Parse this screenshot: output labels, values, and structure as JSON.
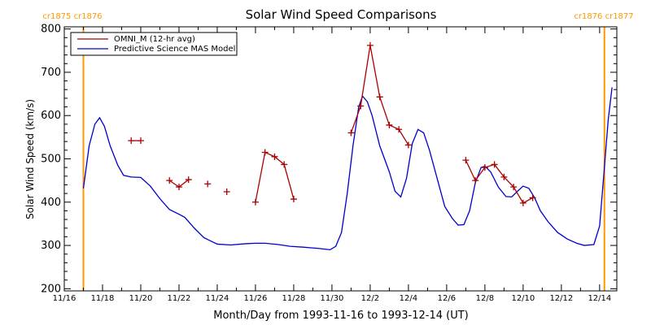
{
  "chart_data": {
    "type": "line",
    "title": "Solar Wind Speed Comparisons",
    "xlabel": "Month/Day from 1993-11-16 to 1993-12-14 (UT)",
    "ylabel": "Solar Wind Speed (km/s)",
    "xlim_days": [
      0,
      28.9
    ],
    "ylim": [
      195,
      805
    ],
    "yticks": [
      200,
      300,
      400,
      500,
      600,
      700,
      800
    ],
    "xticks": [
      {
        "day": 0,
        "label": "11/16"
      },
      {
        "day": 2,
        "label": "11/18"
      },
      {
        "day": 4,
        "label": "11/20"
      },
      {
        "day": 6,
        "label": "11/22"
      },
      {
        "day": 8,
        "label": "11/24"
      },
      {
        "day": 10,
        "label": "11/26"
      },
      {
        "day": 12,
        "label": "11/28"
      },
      {
        "day": 14,
        "label": "11/30"
      },
      {
        "day": 16,
        "label": "12/2"
      },
      {
        "day": 18,
        "label": "12/4"
      },
      {
        "day": 20,
        "label": "12/6"
      },
      {
        "day": 22,
        "label": "12/8"
      },
      {
        "day": 24,
        "label": "12/10"
      },
      {
        "day": 26,
        "label": "12/12"
      },
      {
        "day": 28,
        "label": "12/14"
      }
    ],
    "rotation_boundaries": [
      {
        "day": 1.0,
        "label": "cr1875 cr1876",
        "side": "left"
      },
      {
        "day": 28.25,
        "label": "cr1876 cr1877",
        "side": "right"
      }
    ],
    "legend_position": "top-left",
    "series": [
      {
        "name": "OMNI_M (12-hr avg)",
        "color": "#aa0000",
        "marker": "+",
        "segments": [
          [
            [
              3.5,
              542
            ],
            [
              4.0,
              542
            ]
          ],
          [
            [
              5.5,
              450
            ],
            [
              6.0,
              435
            ],
            [
              6.5,
              452
            ]
          ],
          [
            [
              7.5,
              442
            ]
          ],
          [
            [
              8.5,
              424
            ]
          ],
          [
            [
              10.0,
              400
            ],
            [
              10.5,
              515
            ],
            [
              11.0,
              505
            ],
            [
              11.5,
              487
            ],
            [
              12.0,
              407
            ]
          ],
          [
            [
              15.0,
              560
            ],
            [
              15.5,
              622
            ],
            [
              16.0,
              762
            ],
            [
              16.5,
              643
            ],
            [
              17.0,
              578
            ],
            [
              17.5,
              568
            ],
            [
              18.0,
              532
            ]
          ],
          [
            [
              21.0,
              497
            ],
            [
              21.5,
              450
            ],
            [
              22.0,
              480
            ],
            [
              22.5,
              487
            ],
            [
              23.0,
              458
            ],
            [
              23.5,
              435
            ],
            [
              24.0,
              398
            ],
            [
              24.5,
              410
            ]
          ]
        ]
      },
      {
        "name": "Predictive Science MAS Model",
        "color": "#0000cc",
        "marker": "none",
        "points": [
          [
            1.0,
            432
          ],
          [
            1.3,
            530
          ],
          [
            1.6,
            580
          ],
          [
            1.85,
            595
          ],
          [
            2.1,
            575
          ],
          [
            2.4,
            530
          ],
          [
            2.8,
            485
          ],
          [
            3.1,
            462
          ],
          [
            3.5,
            458
          ],
          [
            4.0,
            457
          ],
          [
            4.5,
            437
          ],
          [
            5.0,
            408
          ],
          [
            5.5,
            383
          ],
          [
            6.0,
            372
          ],
          [
            6.3,
            365
          ],
          [
            6.8,
            340
          ],
          [
            7.3,
            318
          ],
          [
            8.0,
            303
          ],
          [
            8.7,
            301
          ],
          [
            9.5,
            304
          ],
          [
            10.0,
            305
          ],
          [
            10.5,
            305
          ],
          [
            11.2,
            302
          ],
          [
            11.8,
            298
          ],
          [
            12.5,
            296
          ],
          [
            13.3,
            293
          ],
          [
            13.9,
            290
          ],
          [
            14.2,
            298
          ],
          [
            14.5,
            330
          ],
          [
            14.8,
            420
          ],
          [
            15.1,
            530
          ],
          [
            15.4,
            620
          ],
          [
            15.6,
            645
          ],
          [
            15.85,
            632
          ],
          [
            16.1,
            600
          ],
          [
            16.5,
            530
          ],
          [
            17.0,
            470
          ],
          [
            17.3,
            425
          ],
          [
            17.6,
            412
          ],
          [
            17.9,
            455
          ],
          [
            18.2,
            535
          ],
          [
            18.5,
            568
          ],
          [
            18.8,
            560
          ],
          [
            19.1,
            520
          ],
          [
            19.5,
            455
          ],
          [
            19.9,
            390
          ],
          [
            20.3,
            362
          ],
          [
            20.6,
            347
          ],
          [
            20.9,
            348
          ],
          [
            21.2,
            380
          ],
          [
            21.5,
            445
          ],
          [
            21.8,
            480
          ],
          [
            22.0,
            483
          ],
          [
            22.3,
            470
          ],
          [
            22.7,
            435
          ],
          [
            23.1,
            413
          ],
          [
            23.4,
            412
          ],
          [
            23.7,
            425
          ],
          [
            24.0,
            437
          ],
          [
            24.3,
            432
          ],
          [
            24.6,
            410
          ],
          [
            24.9,
            380
          ],
          [
            25.3,
            355
          ],
          [
            25.8,
            330
          ],
          [
            26.3,
            315
          ],
          [
            26.8,
            305
          ],
          [
            27.2,
            300
          ],
          [
            27.7,
            302
          ],
          [
            28.0,
            345
          ],
          [
            28.25,
            480
          ],
          [
            28.45,
            590
          ],
          [
            28.65,
            665
          ]
        ]
      }
    ]
  }
}
